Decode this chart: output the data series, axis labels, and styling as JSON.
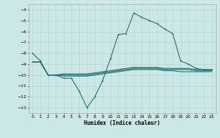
{
  "title": "",
  "xlabel": "Humidex (Indice chaleur)",
  "bg_color": "#cce8e6",
  "line_color": "#1a6b6b",
  "x_values": [
    0,
    1,
    2,
    3,
    4,
    5,
    6,
    7,
    8,
    9,
    10,
    11,
    12,
    13,
    14,
    15,
    16,
    17,
    18,
    19,
    20,
    21,
    22,
    23
  ],
  "y_main": [
    -8.0,
    -8.7,
    -10.0,
    -10.0,
    -10.3,
    -10.3,
    -11.5,
    -13.0,
    -12.0,
    -10.5,
    -8.5,
    -6.3,
    -6.2,
    -4.3,
    -4.7,
    -5.0,
    -5.3,
    -5.8,
    -6.2,
    -8.7,
    -9.0,
    -9.4,
    -9.5,
    -9.5
  ],
  "y_line1": [
    -8.8,
    -8.8,
    -10.0,
    -10.0,
    -9.9,
    -9.9,
    -9.9,
    -9.9,
    -9.8,
    -9.7,
    -9.6,
    -9.5,
    -9.4,
    -9.3,
    -9.3,
    -9.3,
    -9.3,
    -9.4,
    -9.4,
    -9.4,
    -9.4,
    -9.5,
    -9.5,
    -9.5
  ],
  "y_line2": [
    -8.8,
    -8.8,
    -10.0,
    -10.0,
    -10.0,
    -10.0,
    -10.0,
    -10.0,
    -9.9,
    -9.8,
    -9.7,
    -9.6,
    -9.5,
    -9.4,
    -9.4,
    -9.4,
    -9.4,
    -9.5,
    -9.5,
    -9.5,
    -9.5,
    -9.6,
    -9.6,
    -9.6
  ],
  "y_line3": [
    -8.8,
    -8.8,
    -10.0,
    -10.0,
    -10.1,
    -10.1,
    -10.1,
    -10.1,
    -10.0,
    -9.9,
    -9.8,
    -9.7,
    -9.6,
    -9.5,
    -9.5,
    -9.5,
    -9.5,
    -9.6,
    -9.6,
    -9.7,
    -9.7,
    -9.7,
    -9.7,
    -9.7
  ],
  "ylim": [
    -13.5,
    -3.5
  ],
  "xlim": [
    -0.5,
    23.5
  ],
  "yticks": [
    -13,
    -12,
    -11,
    -10,
    -9,
    -8,
    -7,
    -6,
    -5,
    -4
  ],
  "xticks": [
    0,
    1,
    2,
    3,
    4,
    5,
    6,
    7,
    8,
    9,
    10,
    11,
    12,
    13,
    14,
    15,
    16,
    17,
    18,
    19,
    20,
    21,
    22,
    23
  ],
  "xtick_labels": [
    "0",
    "1",
    "2",
    "3",
    "4",
    "5",
    "6",
    "7",
    "8",
    "9",
    "10",
    "11",
    "12",
    "13",
    "14",
    "15",
    "16",
    "17",
    "18",
    "19",
    "20",
    "21",
    "22",
    "23"
  ],
  "grid_color": "#aad4d0",
  "figsize": [
    3.2,
    2.0
  ],
  "dpi": 100,
  "tick_labelsize": 4.5,
  "xlabel_fontsize": 5.5,
  "lw": 0.8,
  "marker_size": 2.0
}
